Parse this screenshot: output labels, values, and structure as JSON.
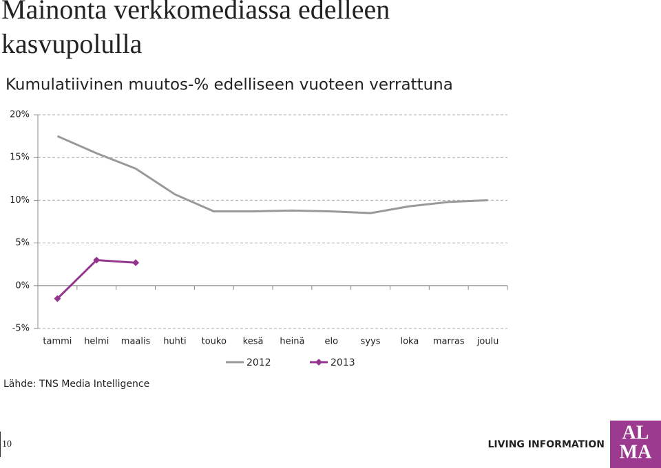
{
  "chart_data": {
    "type": "line",
    "title": "Mainonta verkkomediassa edelleen kasvupolulla",
    "subtitle": "Kumulatiivinen muutos-% edelliseen vuoteen verrattuna",
    "categories": [
      "tammi",
      "helmi",
      "maalis",
      "huhti",
      "touko",
      "kesä",
      "heinä",
      "elo",
      "syys",
      "loka",
      "marras",
      "joulu"
    ],
    "series": [
      {
        "name": "2012",
        "color": "#999999",
        "values": [
          17.5,
          15.5,
          13.7,
          10.7,
          8.7,
          8.7,
          8.8,
          8.7,
          8.5,
          9.3,
          9.8,
          10.0
        ]
      },
      {
        "name": "2013",
        "color": "#93358d",
        "values": [
          -1.5,
          3.0,
          2.7,
          null,
          null,
          null,
          null,
          null,
          null,
          null,
          null,
          null
        ]
      }
    ],
    "ylim": [
      -5,
      20
    ],
    "yticks": [
      {
        "value": -5,
        "label": "-5%"
      },
      {
        "value": 0,
        "label": "0%"
      },
      {
        "value": 5,
        "label": "5%"
      },
      {
        "value": 10,
        "label": "10%"
      },
      {
        "value": 15,
        "label": "15%"
      },
      {
        "value": 20,
        "label": "20%"
      }
    ],
    "grid": true,
    "legend": "bottom",
    "source": "Lähde: TNS Media Intelligence"
  },
  "footer": {
    "page_number": "10",
    "tagline": "LIVING INFORMATION",
    "logo": [
      "AL",
      "MA"
    ]
  }
}
